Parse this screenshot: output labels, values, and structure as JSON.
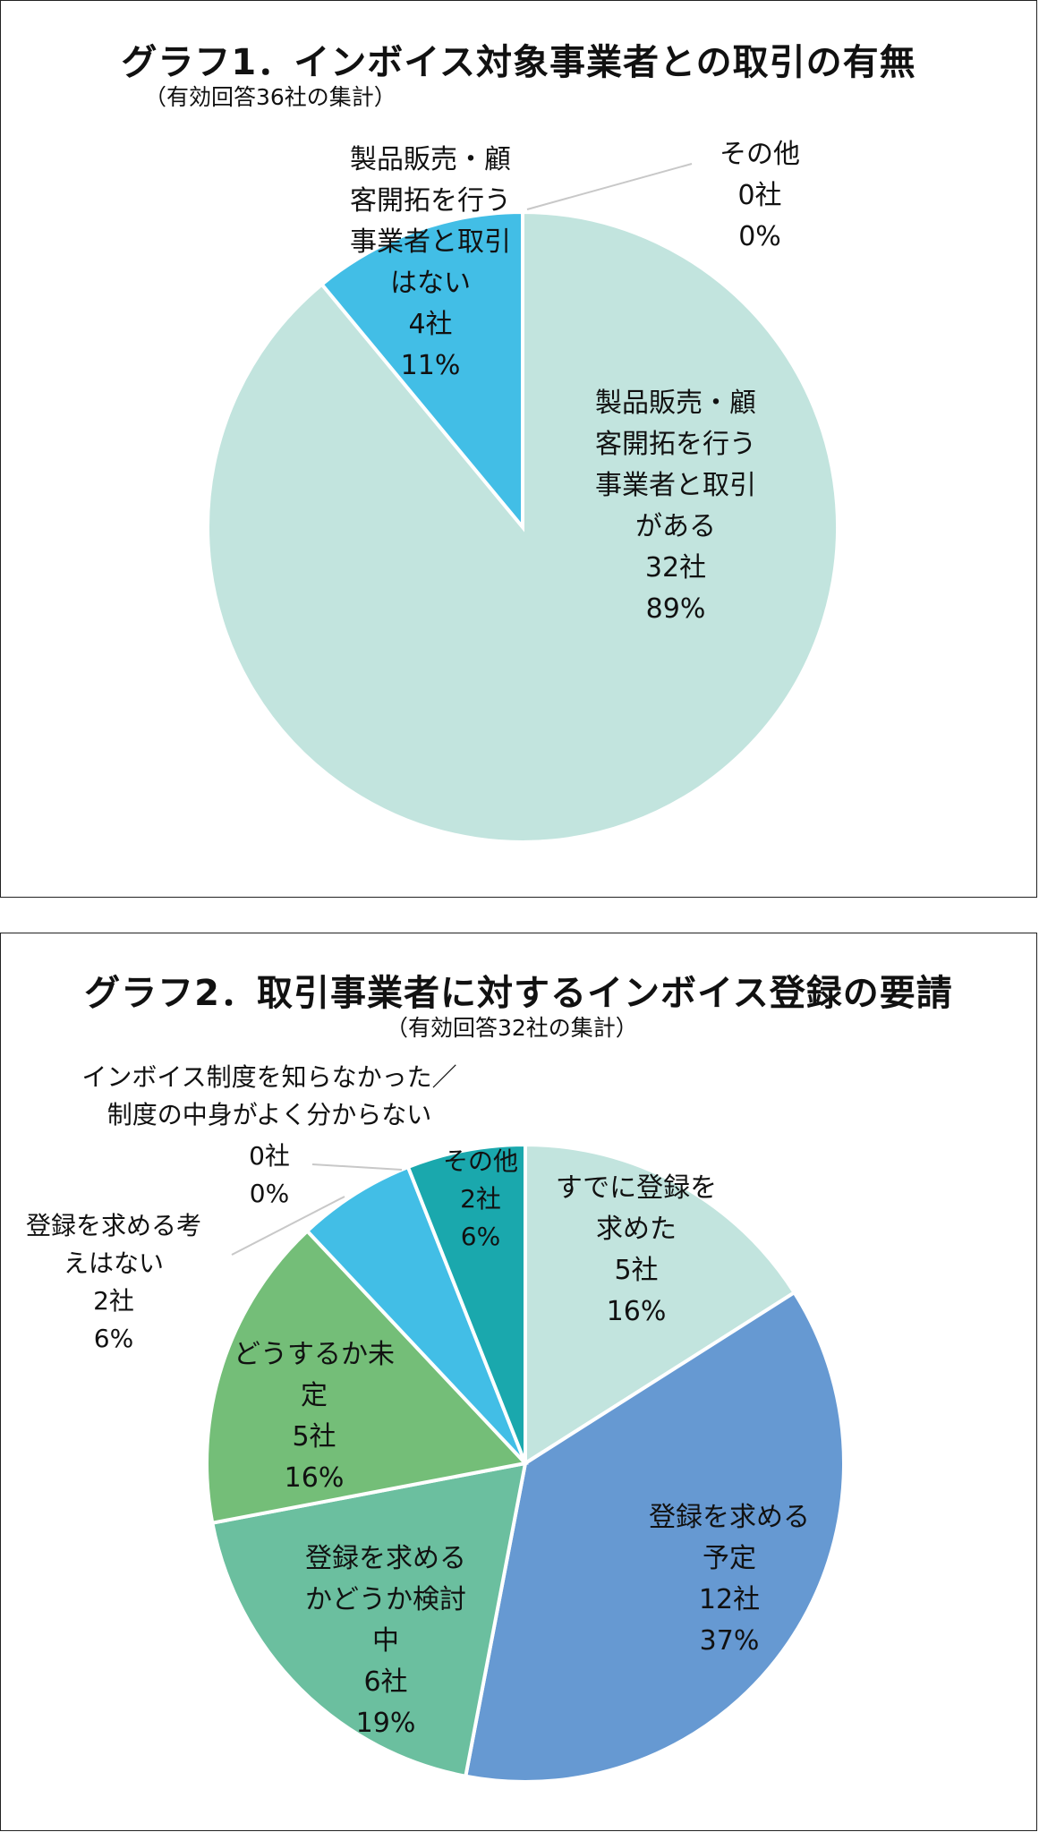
{
  "chart_data": [
    {
      "type": "pie",
      "title": "グラフ1．インボイス対象事業者との取引の有無",
      "subtitle": "（有効回答36社の集計）",
      "slices": [
        {
          "label": "製品販売・顧客開拓を行う事業者と取引がある",
          "label_lines": [
            "製品販売・顧",
            "客開拓を行う",
            "事業者と取引",
            "がある"
          ],
          "count": 32,
          "count_text": "32社",
          "value": 89,
          "percent_text": "89%",
          "color": "#c2e4de"
        },
        {
          "label": "その他",
          "label_lines": [
            "その他"
          ],
          "count": 0,
          "count_text": "0社",
          "value": 0,
          "percent_text": "0%",
          "color": "#1aa8ad"
        },
        {
          "label": "製品販売・顧客開拓を行う事業者と取引はない",
          "label_lines": [
            "製品販売・顧",
            "客開拓を行う",
            "事業者と取引",
            "はない"
          ],
          "count": 4,
          "count_text": "4社",
          "value": 11,
          "percent_text": "11%",
          "color": "#42bee6"
        }
      ]
    },
    {
      "type": "pie",
      "title": "グラフ2．取引事業者に対するインボイス登録の要請",
      "subtitle": "（有効回答32社の集計）",
      "slices": [
        {
          "label": "すでに登録を求めた",
          "label_lines": [
            "すでに登録を",
            "求めた"
          ],
          "count": 5,
          "count_text": "5社",
          "value": 16,
          "percent_text": "16%",
          "color": "#c2e4de"
        },
        {
          "label": "登録を求める予定",
          "label_lines": [
            "登録を求める",
            "予定"
          ],
          "count": 12,
          "count_text": "12社",
          "value": 37,
          "percent_text": "37%",
          "color": "#6699d2"
        },
        {
          "label": "登録を求めるかどうか検討中",
          "label_lines": [
            "登録を求める",
            "かどうか検討",
            "中"
          ],
          "count": 6,
          "count_text": "6社",
          "value": 19,
          "percent_text": "19%",
          "color": "#6bbf9f"
        },
        {
          "label": "どうするか未定",
          "label_lines": [
            "どうするか未",
            "定"
          ],
          "count": 5,
          "count_text": "5社",
          "value": 16,
          "percent_text": "16%",
          "color": "#74be78"
        },
        {
          "label": "登録を求める考えはない",
          "label_lines": [
            "登録を求める考",
            "えはない"
          ],
          "count": 2,
          "count_text": "2社",
          "value": 6,
          "percent_text": "6%",
          "color": "#42bee6"
        },
        {
          "label": "インボイス制度を知らなかった／制度の中身がよく分からない",
          "label_lines": [
            "インボイス制度を知らなかった／",
            "制度の中身がよく分からない"
          ],
          "count": 0,
          "count_text": "0社",
          "value": 0,
          "percent_text": "0%",
          "color": "#42bee6"
        },
        {
          "label": "その他",
          "label_lines": [
            "その他"
          ],
          "count": 2,
          "count_text": "2社",
          "value": 6,
          "percent_text": "6%",
          "color": "#1aa8ad"
        }
      ]
    }
  ]
}
